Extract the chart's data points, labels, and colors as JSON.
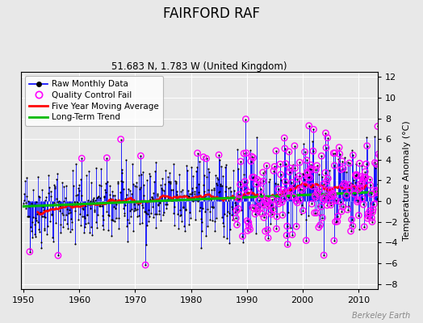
{
  "title": "FAIRFORD RAF",
  "subtitle": "51.683 N, 1.783 W (United Kingdom)",
  "ylabel": "Temperature Anomaly (°C)",
  "watermark": "Berkeley Earth",
  "xlim": [
    1949.5,
    2013.5
  ],
  "ylim": [
    -8.5,
    12.5
  ],
  "yticks": [
    -8,
    -6,
    -4,
    -2,
    0,
    2,
    4,
    6,
    8,
    10,
    12
  ],
  "xticks": [
    1950,
    1960,
    1970,
    1980,
    1990,
    2000,
    2010
  ],
  "raw_color": "#0000ff",
  "ma_color": "#ff0000",
  "trend_color": "#00bb00",
  "qc_color": "#ff00ff",
  "bg_color": "#e8e8e8",
  "grid_color": "#ffffff",
  "trend_slope": 0.022,
  "trend_base_year": 1980,
  "trend_intercept": 0.15
}
